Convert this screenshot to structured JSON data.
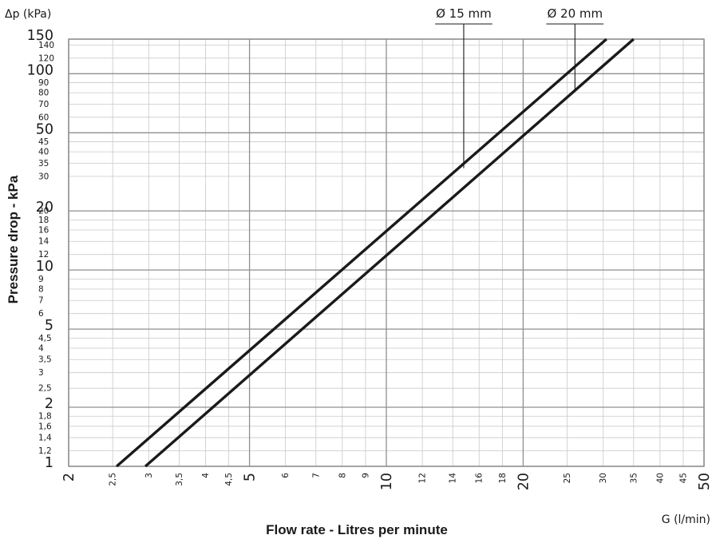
{
  "chart_data": {
    "type": "line",
    "scale": {
      "x": "log",
      "y": "log"
    },
    "xlim": [
      2,
      50
    ],
    "ylim": [
      1,
      150
    ],
    "grid": true,
    "xlabel": "Flow rate - Litres per minute",
    "ylabel": "Pressure drop - kPa",
    "x_unit_label": "G (l/min)",
    "y_unit_label": "Δp (kPa)",
    "x_ticks_major": [
      {
        "value": 2,
        "label": "2"
      },
      {
        "value": 5,
        "label": "5"
      },
      {
        "value": 10,
        "label": "10"
      },
      {
        "value": 20,
        "label": "20"
      },
      {
        "value": 50,
        "label": "50"
      }
    ],
    "x_ticks_minor": [
      {
        "value": 2.5,
        "label": "2,5"
      },
      {
        "value": 3,
        "label": "3"
      },
      {
        "value": 3.5,
        "label": "3,5"
      },
      {
        "value": 4,
        "label": "4"
      },
      {
        "value": 4.5,
        "label": "4,5"
      },
      {
        "value": 6,
        "label": "6"
      },
      {
        "value": 7,
        "label": "7"
      },
      {
        "value": 8,
        "label": "8"
      },
      {
        "value": 9,
        "label": "9"
      },
      {
        "value": 12,
        "label": "12"
      },
      {
        "value": 14,
        "label": "14"
      },
      {
        "value": 16,
        "label": "16"
      },
      {
        "value": 18,
        "label": "18"
      },
      {
        "value": 25,
        "label": "25"
      },
      {
        "value": 30,
        "label": "30"
      },
      {
        "value": 35,
        "label": "35"
      },
      {
        "value": 40,
        "label": "40"
      },
      {
        "value": 45,
        "label": "45"
      }
    ],
    "y_ticks_major": [
      {
        "value": 1,
        "label": "1"
      },
      {
        "value": 2,
        "label": "2"
      },
      {
        "value": 5,
        "label": "5"
      },
      {
        "value": 10,
        "label": "10"
      },
      {
        "value": 20,
        "label": "20"
      },
      {
        "value": 50,
        "label": "50"
      },
      {
        "value": 100,
        "label": "100"
      },
      {
        "value": 150,
        "label": "150"
      }
    ],
    "y_ticks_minor": [
      {
        "value": 1.2,
        "label": "1,2"
      },
      {
        "value": 1.4,
        "label": "1,4"
      },
      {
        "value": 1.6,
        "label": "1,6"
      },
      {
        "value": 1.8,
        "label": "1,8"
      },
      {
        "value": 2.5,
        "label": "2,5"
      },
      {
        "value": 3,
        "label": "3"
      },
      {
        "value": 3.5,
        "label": "3,5"
      },
      {
        "value": 4,
        "label": "4"
      },
      {
        "value": 4.5,
        "label": "4,5"
      },
      {
        "value": 6,
        "label": "6"
      },
      {
        "value": 7,
        "label": "7"
      },
      {
        "value": 8,
        "label": "8"
      },
      {
        "value": 9,
        "label": "9"
      },
      {
        "value": 12,
        "label": "12"
      },
      {
        "value": 14,
        "label": "14"
      },
      {
        "value": 16,
        "label": "16"
      },
      {
        "value": 18,
        "label": "18"
      },
      {
        "value": 20,
        "label": "20"
      },
      {
        "value": 30,
        "label": "30"
      },
      {
        "value": 35,
        "label": "35"
      },
      {
        "value": 40,
        "label": "40"
      },
      {
        "value": 45,
        "label": "45"
      },
      {
        "value": 60,
        "label": "60"
      },
      {
        "value": 70,
        "label": "70"
      },
      {
        "value": 80,
        "label": "80"
      },
      {
        "value": 90,
        "label": "90"
      },
      {
        "value": 120,
        "label": "120"
      },
      {
        "value": 140,
        "label": "140"
      }
    ],
    "series": [
      {
        "name": "Ø 15 mm",
        "color": "#1a1a1a",
        "points": [
          {
            "x": 2.55,
            "y": 1.0
          },
          {
            "x": 30.5,
            "y": 150
          }
        ],
        "label_at": {
          "x": 14.8,
          "y": 33
        }
      },
      {
        "name": "Ø 20 mm",
        "color": "#1a1a1a",
        "points": [
          {
            "x": 2.95,
            "y": 1.0
          },
          {
            "x": 35.0,
            "y": 150
          }
        ],
        "label_at": {
          "x": 26.0,
          "y": 82
        }
      }
    ]
  }
}
